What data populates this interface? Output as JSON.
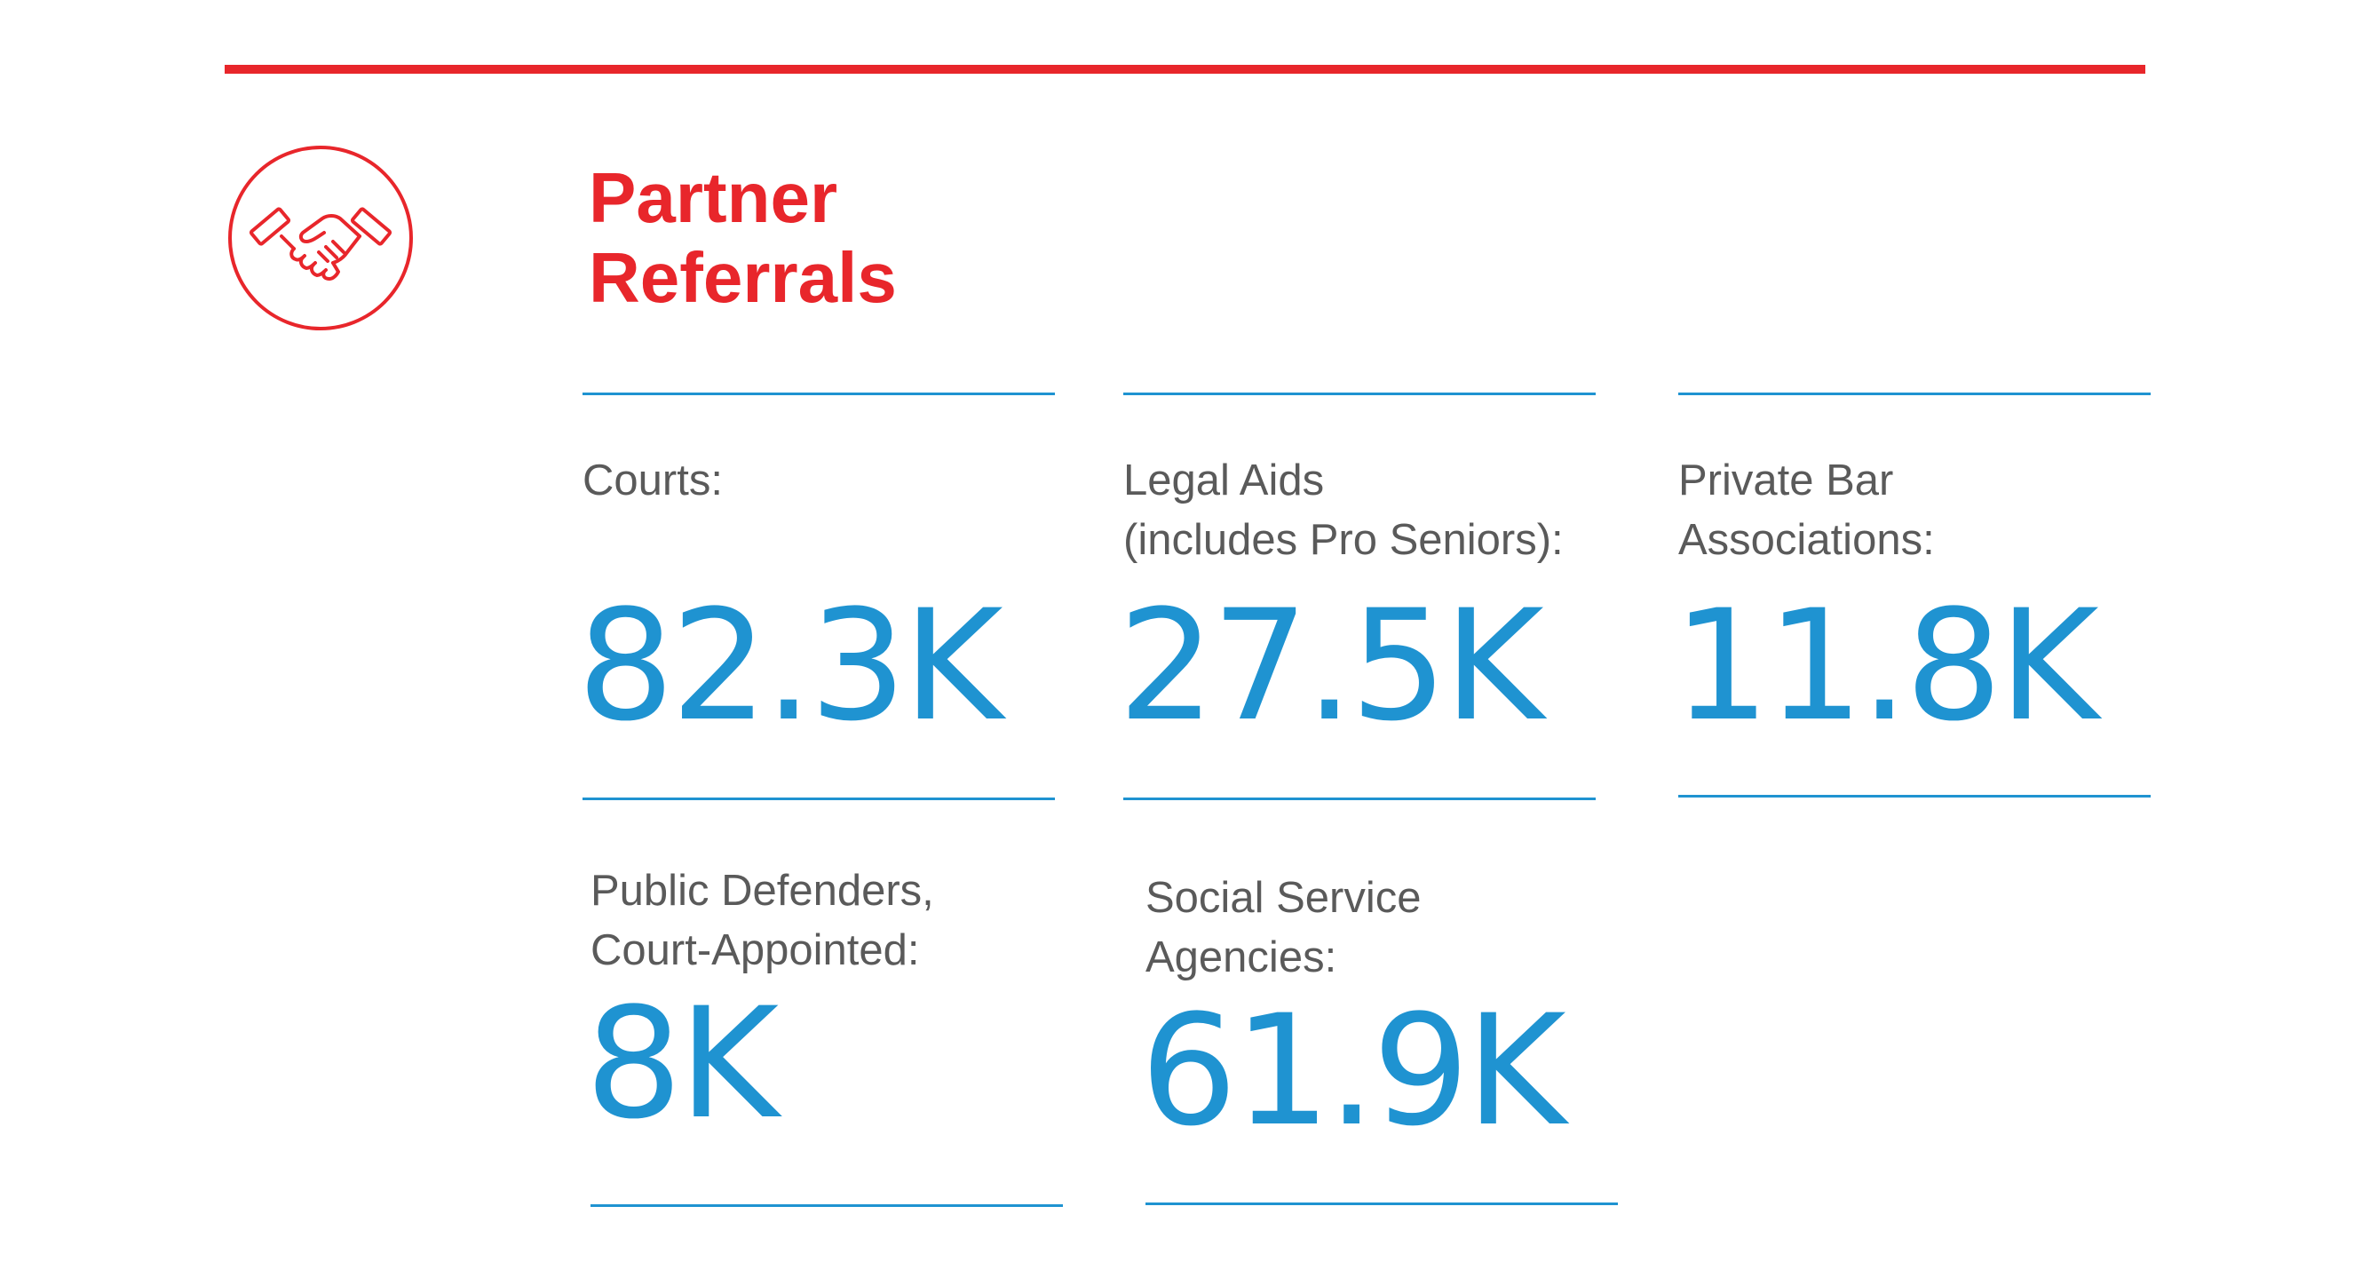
{
  "header": {
    "title": "Partner\nReferrals",
    "icon": "handshake-icon"
  },
  "colors": {
    "accent_red": "#e8262b",
    "accent_blue": "#1f93d1",
    "label_gray": "#5a5a5a"
  },
  "stats": [
    {
      "label": "Courts:",
      "value": "82.3K"
    },
    {
      "label": "Legal Aids\n(includes Pro Seniors):",
      "value": "27.5K"
    },
    {
      "label": "Private Bar\nAssociations:",
      "value": "11.8K"
    },
    {
      "label": "Public Defenders,\nCourt-Appointed:",
      "value": "8K"
    },
    {
      "label": "Social Service\nAgencies:",
      "value": "61.9K"
    }
  ]
}
